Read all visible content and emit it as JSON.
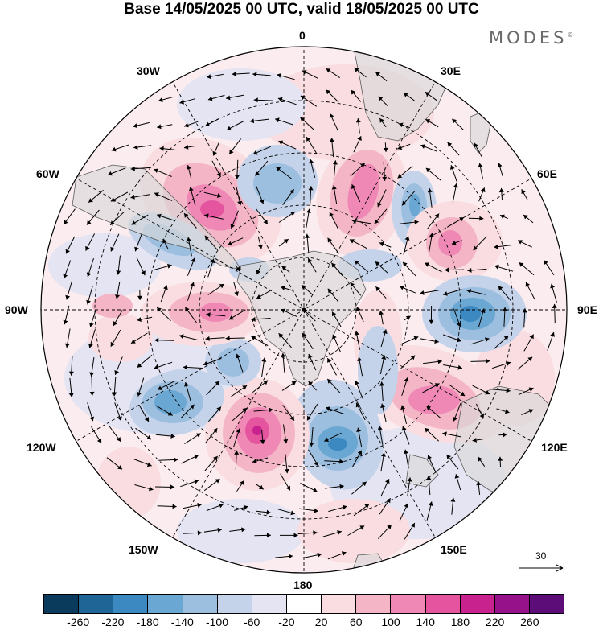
{
  "title": "Base 14/05/2025 00 UTC, valid 18/05/2025 00 UTC",
  "brand": "MODES",
  "brand_mark": "©",
  "longitude_labels": {
    "top": "0",
    "lon_30e": "30E",
    "lon_60e": "60E",
    "right": "90E",
    "lon_120e": "120E",
    "lon_150e": "150E",
    "bottom": "180",
    "lon_150w": "150W",
    "lon_120w": "120W",
    "left": "90W",
    "lon_60w": "60W",
    "lon_30w": "30W"
  },
  "reference_vector": "30",
  "colorbar": {
    "colors": [
      "#0b3b5c",
      "#1f6596",
      "#3c88c0",
      "#6aa7d2",
      "#9cbfe0",
      "#c4d2ea",
      "#e4e4f2",
      "#ffffff",
      "#f9dde0",
      "#f4b6c6",
      "#ef88b4",
      "#e5559f",
      "#c8228e",
      "#95128a",
      "#5c0d78"
    ],
    "ticks": [
      "-260",
      "-220",
      "-180",
      "-140",
      "-100",
      "-60",
      "-20",
      "20",
      "60",
      "100",
      "140",
      "180",
      "220",
      "260"
    ]
  },
  "colors": {
    "land": "#e6e6e6",
    "coast": "#5a5a5a",
    "grid": "#000000"
  }
}
